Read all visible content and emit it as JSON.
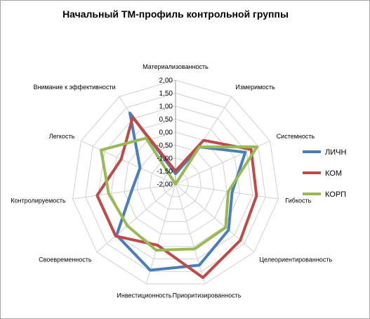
{
  "chart_data": {
    "type": "radar",
    "title": "Начальный ТМ-профиль контрольной группы",
    "axes": [
      "Материализованность",
      "Измеримость",
      "Системность",
      "Гибкость",
      "Целеориентированность",
      "Приоритизированность",
      "Инвестиционность",
      "Своевременность",
      "Контролируемость",
      "Легкость",
      "Внимание к эффективности"
    ],
    "rlim": [
      -2,
      2
    ],
    "ticks": [
      "2,00",
      "1,50",
      "1,00",
      "0,50",
      "0,00",
      "-0,50",
      "-1,00",
      "-1,50",
      "-2,00"
    ],
    "tick_values": [
      2,
      1.5,
      1,
      0.5,
      0,
      -0.5,
      -1,
      -1.5,
      -2
    ],
    "grid": true,
    "legend_position": "right",
    "series": [
      {
        "name": "ЛИЧН",
        "color": "#4a7ebb",
        "values": [
          -1.6,
          -0.3,
          0.95,
          0.2,
          0.7,
          1.25,
          1.45,
          1.0,
          -0.3,
          -0.5,
          1.25
        ]
      },
      {
        "name": "КОМ",
        "color": "#be4b48",
        "values": [
          -1.5,
          0.0,
          1.2,
          1.15,
          1.3,
          1.75,
          0.45,
          1.05,
          1.05,
          0.3,
          1.05
        ]
      },
      {
        "name": "КОРП",
        "color": "#98b954",
        "values": [
          -2.0,
          -0.3,
          1.45,
          0.05,
          0.55,
          0.6,
          0.65,
          0.45,
          0.6,
          1.15,
          0.1
        ]
      }
    ]
  }
}
